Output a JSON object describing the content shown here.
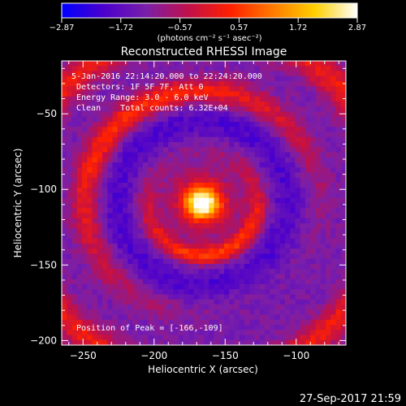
{
  "chart_data": {
    "type": "heatmap",
    "title": "Reconstructed RHESSI Image",
    "xlabel": "Heliocentric X (arcsec)",
    "ylabel": "Heliocentric Y (arcsec)",
    "xlim": [
      -265,
      -65
    ],
    "ylim": [
      -203,
      -15
    ],
    "x_ticks": [
      -250,
      -200,
      -150,
      -100
    ],
    "x_tick_labels": [
      "−250",
      "−200",
      "−150",
      "−100"
    ],
    "y_ticks": [
      -50,
      -100,
      -150,
      -200
    ],
    "y_tick_labels": [
      "−50",
      "−100",
      "−150",
      "−200"
    ],
    "colorbar": {
      "min": -2.87,
      "max": 2.87,
      "tick_labels": [
        "−2.87",
        "−1.72",
        "−0.57",
        "0.57",
        "1.72",
        "2.87"
      ],
      "unit_label": "(photons cm⁻² s⁻¹ asec⁻²)",
      "colormap": [
        "#0000ff",
        "#4b00cc",
        "#7a1faa",
        "#c0104a",
        "#ff2000",
        "#ff7a00",
        "#ffd000",
        "#ffffff"
      ]
    },
    "peak": {
      "x": -166,
      "y": -109
    },
    "info_lines": [
      "5-Jan-2016 22:14:20.000 to 22:24:20.000",
      "Detectors: 1F 5F 7F, Att 0",
      "Energy Range: 3.0 - 6.0 keV",
      "Clean    Total counts: 6.32E+04"
    ],
    "peak_text": "Position of Peak = [-166,-109]",
    "timestamp": "27-Sep-2017 21:59"
  }
}
